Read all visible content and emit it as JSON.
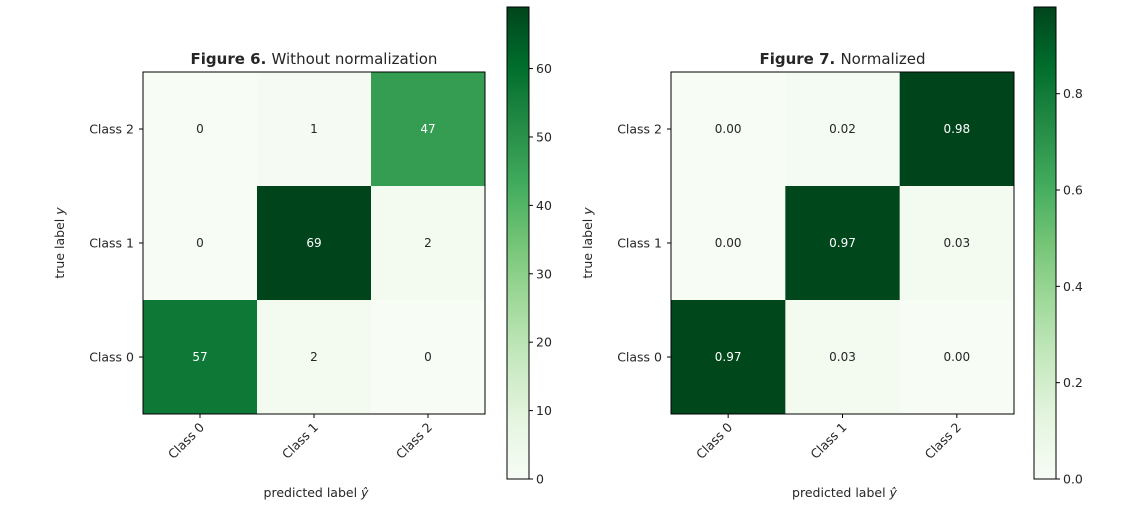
{
  "chart_data": [
    {
      "type": "heatmap",
      "title_bold": "Figure 6.",
      "title_rest": "Without normalization",
      "xlabel_text": "predicted label",
      "xlabel_symbol": "ŷ",
      "ylabel_text": "true label",
      "ylabel_symbol": "y",
      "x_categories": [
        "Class 0",
        "Class 1",
        "Class 2"
      ],
      "y_categories": [
        "Class 2",
        "Class 1",
        "Class 0"
      ],
      "matrix": [
        [
          0,
          1,
          47
        ],
        [
          0,
          69,
          2
        ],
        [
          57,
          2,
          0
        ]
      ],
      "cell_labels": [
        [
          "0",
          "1",
          "47"
        ],
        [
          "0",
          "69",
          "2"
        ],
        [
          "57",
          "2",
          "0"
        ]
      ],
      "vmin": 0,
      "vmax": 69,
      "colorbar_ticks": [
        0,
        10,
        20,
        30,
        40,
        50,
        60
      ],
      "colorbar_tick_labels": [
        "0",
        "10",
        "20",
        "30",
        "40",
        "50",
        "60"
      ],
      "colormap": "Greens",
      "grid": false
    },
    {
      "type": "heatmap",
      "title_bold": "Figure 7.",
      "title_rest": "Normalized",
      "xlabel_text": "predicted label",
      "xlabel_symbol": "ŷ",
      "ylabel_text": "true label",
      "ylabel_symbol": "y",
      "x_categories": [
        "Class 0",
        "Class 1",
        "Class 2"
      ],
      "y_categories": [
        "Class 2",
        "Class 1",
        "Class 0"
      ],
      "matrix": [
        [
          0.0,
          0.02,
          0.98
        ],
        [
          0.0,
          0.97,
          0.03
        ],
        [
          0.97,
          0.03,
          0.0
        ]
      ],
      "cell_labels": [
        [
          "0.00",
          "0.02",
          "0.98"
        ],
        [
          "0.00",
          "0.97",
          "0.03"
        ],
        [
          "0.97",
          "0.03",
          "0.00"
        ]
      ],
      "vmin": 0,
      "vmax": 0.98,
      "colorbar_ticks": [
        0.0,
        0.2,
        0.4,
        0.6,
        0.8
      ],
      "colorbar_tick_labels": [
        "0.0",
        "0.2",
        "0.4",
        "0.6",
        "0.8"
      ],
      "colormap": "Greens",
      "grid": false
    }
  ]
}
